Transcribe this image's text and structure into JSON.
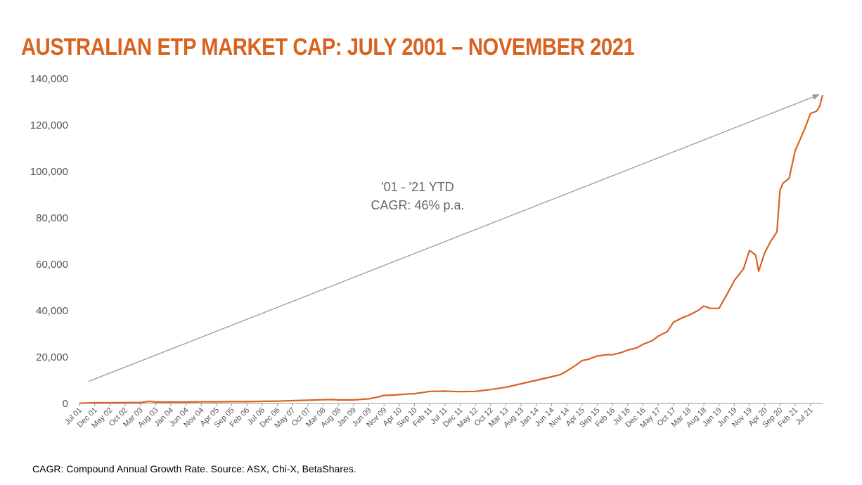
{
  "colors": {
    "title": "#d8621e",
    "line": "#d8621e",
    "arrow": "#9a9a9a",
    "axis_text": "#555555"
  },
  "chart_data": {
    "type": "line",
    "title": "AUSTRALIAN ETP MARKET CAP: JULY 2001 – NOVEMBER 2021",
    "xlabel": "",
    "ylabel": "",
    "ylim": [
      0,
      140000
    ],
    "yticks": [
      "0",
      "20,000",
      "40,000",
      "60,000",
      "80,000",
      "100,000",
      "120,000",
      "140,000"
    ],
    "xticks": [
      "Jul 01",
      "Dec 01",
      "May 02",
      "Oct 02",
      "Mar 03",
      "Aug 03",
      "Jan 04",
      "Jun 04",
      "Nov 04",
      "Apr 05",
      "Sep 05",
      "Feb 06",
      "Jul 06",
      "Dec 06",
      "May 07",
      "Oct 07",
      "Mar 08",
      "Aug 08",
      "Jan 09",
      "Jun 09",
      "Nov 09",
      "Apr 10",
      "Sep 10",
      "Feb 11",
      "Jul 11",
      "Dec 11",
      "May 12",
      "Oct 12",
      "Mar 13",
      "Aug 13",
      "Jan 14",
      "Jun 14",
      "Nov 14",
      "Apr 15",
      "Sep 15",
      "Feb 16",
      "Jul 16",
      "Dec 16",
      "May 17",
      "Oct 17",
      "Mar 18",
      "Aug 18",
      "Jan 19",
      "Jun 19",
      "Nov 19",
      "Apr 20",
      "Sep 20",
      "Feb 21",
      "Jul 21"
    ],
    "grid": false,
    "legend": "none",
    "annotation": {
      "lines": [
        "'01 - '21 YTD",
        "CAGR: 46% p.a."
      ]
    },
    "trend_arrow": {
      "from": [
        "Jul 01",
        9500
      ],
      "to": [
        "Nov 21",
        133000
      ]
    },
    "series": [
      {
        "x": [
          "Jul 01",
          "Dec 01",
          "May 02",
          "Oct 02",
          "Mar 03",
          "Jun 03",
          "Aug 03",
          "Jan 04",
          "Jun 04",
          "Nov 04",
          "Apr 05",
          "Sep 05",
          "Feb 06",
          "Jul 06",
          "Dec 06",
          "May 07",
          "Oct 07",
          "Mar 08",
          "Jun 08",
          "Aug 08",
          "Jan 09",
          "Jun 09",
          "Sep 09",
          "Nov 09",
          "Feb 10",
          "Apr 10",
          "Jun 10",
          "Aug 10",
          "Sep 10",
          "Dec 10",
          "Feb 11",
          "Jul 11",
          "Dec 11",
          "May 12",
          "Oct 12",
          "Mar 13",
          "Aug 13",
          "Jan 14",
          "Jun 14",
          "Sep 14",
          "Nov 14",
          "Feb 15",
          "Apr 15",
          "Jun 15",
          "Sep 15",
          "Dec 15",
          "Feb 16",
          "May 16",
          "Jul 16",
          "Oct 16",
          "Dec 16",
          "Mar 17",
          "May 17",
          "Aug 17",
          "Oct 17",
          "Jan 18",
          "Mar 18",
          "Jun 18",
          "Aug 18",
          "Oct 18",
          "Jan 19",
          "Apr 19",
          "Jun 19",
          "Sep 19",
          "Nov 19",
          "Jan 20",
          "Feb 20",
          "Mar 20",
          "Apr 20",
          "Jun 20",
          "Aug 20",
          "Sep 20",
          "Oct 20",
          "Dec 20",
          "Feb 21",
          "May 21",
          "Jul 21",
          "Sep 21",
          "Oct 21",
          "Nov 21"
        ],
        "y": [
          100,
          300,
          300,
          400,
          400,
          900,
          600,
          600,
          600,
          700,
          700,
          800,
          800,
          900,
          1000,
          1200,
          1400,
          1600,
          1700,
          1500,
          1500,
          2000,
          2800,
          3500,
          3600,
          3800,
          4000,
          4200,
          4200,
          4800,
          5200,
          5300,
          5100,
          5200,
          6000,
          7000,
          8500,
          10000,
          11500,
          12500,
          14000,
          16500,
          18500,
          19000,
          20500,
          21000,
          21000,
          22000,
          23000,
          24000,
          25500,
          27000,
          29000,
          31000,
          35000,
          37000,
          38000,
          40000,
          42000,
          41000,
          41000,
          48000,
          53000,
          58000,
          66000,
          64000,
          57000,
          61000,
          65000,
          70000,
          74000,
          92000,
          95000,
          97000,
          109000,
          118000,
          125000,
          126000,
          128000,
          133000
        ]
      }
    ]
  },
  "footnote": "CAGR: Compound Annual Growth Rate. Source: ASX, Chi-X, BetaShares."
}
